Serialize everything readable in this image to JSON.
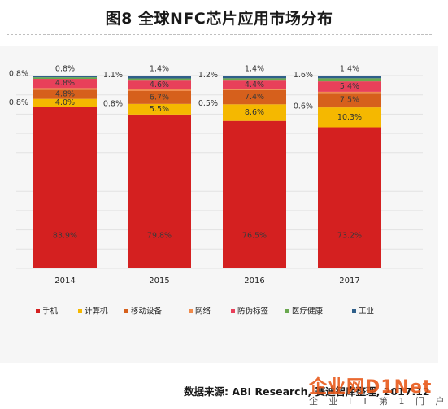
{
  "title": "图8 全球NFC芯片应用市场分布",
  "source": "数据来源: ABI Research, 赛迪智库整理, 2017.12",
  "watermark": {
    "brand": "企业网D1Net",
    "tagline": "企 业 I T 第 1 门 户"
  },
  "chart_data": {
    "type": "bar",
    "stacked": true,
    "percent_stacked": true,
    "categories": [
      "2014",
      "2015",
      "2016",
      "2017"
    ],
    "ylim": [
      0,
      100
    ],
    "grid": true,
    "legend_position": "bottom",
    "series": [
      {
        "name": "手机",
        "color": "#d42020",
        "values": [
          83.9,
          79.8,
          76.5,
          73.2
        ],
        "labels": [
          "83.9%",
          "79.8%",
          "76.5%",
          "73.2%"
        ]
      },
      {
        "name": "计算机",
        "color": "#f5b800",
        "values": [
          4.0,
          5.5,
          8.6,
          10.3
        ],
        "labels": [
          "4.0%",
          "5.5%",
          "8.6%",
          "10.3%"
        ]
      },
      {
        "name": "移动设备",
        "color": "#d6601c",
        "values": [
          4.8,
          6.7,
          7.4,
          7.5
        ],
        "labels": [
          "4.8%",
          "6.7%",
          "7.4%",
          "7.5%"
        ]
      },
      {
        "name": "网络",
        "color": "#f08a4b",
        "values": [
          0.8,
          0.8,
          0.5,
          0.6
        ],
        "labels": [
          "0.8%",
          "0.8%",
          "0.5%",
          "0.6%"
        ]
      },
      {
        "name": "防伪标签",
        "color": "#e8405a",
        "values": [
          4.8,
          4.6,
          4.4,
          5.4
        ],
        "labels": [
          "4.8%",
          "4.6%",
          "4.4%",
          "5.4%"
        ]
      },
      {
        "name": "医疗健康",
        "color": "#6aa84f",
        "values": [
          0.8,
          1.1,
          1.2,
          1.6
        ],
        "labels": [
          "0.8%",
          "1.1%",
          "1.2%",
          "1.6%"
        ]
      },
      {
        "name": "工业",
        "color": "#2f5f8a",
        "values": [
          0.8,
          1.4,
          1.4,
          1.4
        ],
        "labels": [
          "0.8%",
          "1.4%",
          "1.4%",
          "1.4%"
        ]
      }
    ]
  }
}
